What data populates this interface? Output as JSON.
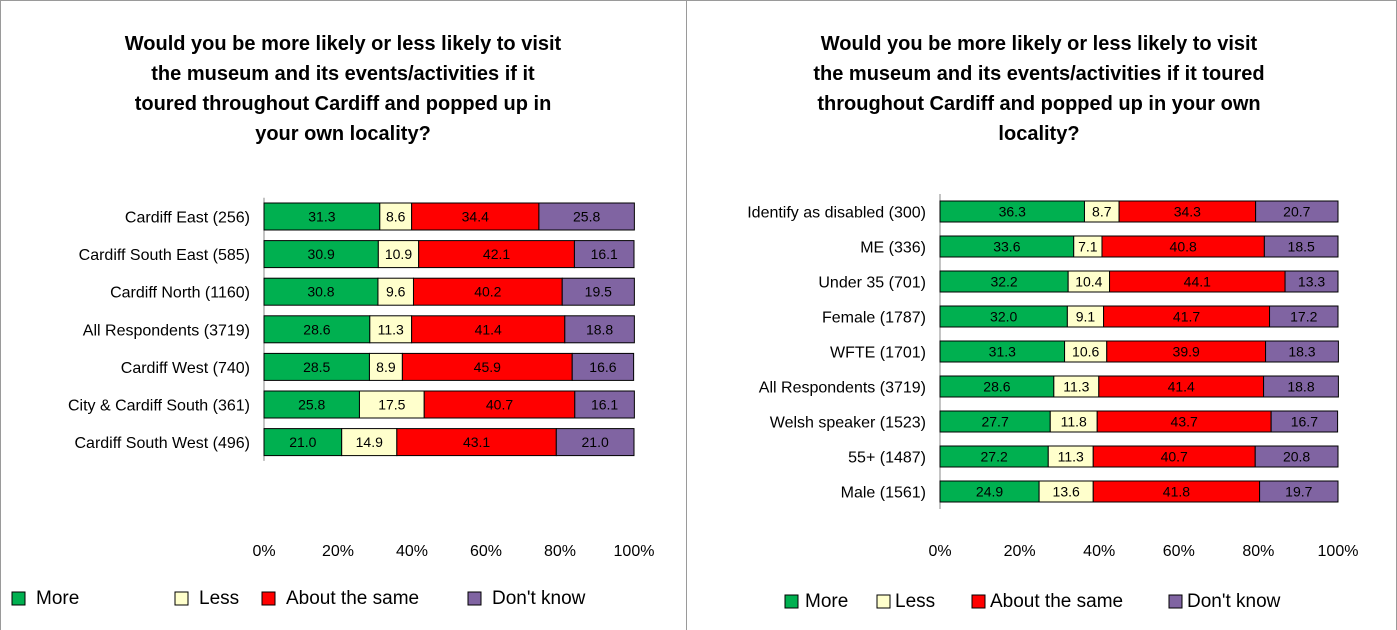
{
  "charts": [
    {
      "type": "bar",
      "stacked": true,
      "orientation": "horizontal",
      "title_lines": [
        "Would you be more likely or less likely to visit",
        "the museum and its events/activities if it",
        "toured throughout Cardiff and popped up in",
        "your own locality?"
      ],
      "categories": [
        "Cardiff East (256)",
        "Cardiff South East (585)",
        "Cardiff North (1160)",
        "All Respondents (3719)",
        "Cardiff West (740)",
        "City & Cardiff South (361)",
        "Cardiff South West (496)"
      ],
      "series": [
        {
          "name": "More",
          "color": "#00b050",
          "values": [
            31.3,
            30.9,
            30.8,
            28.6,
            28.5,
            25.8,
            21.0
          ]
        },
        {
          "name": "Less",
          "color": "#ffffcc",
          "values": [
            8.6,
            10.9,
            9.6,
            11.3,
            8.9,
            17.5,
            14.9
          ]
        },
        {
          "name": "About the same",
          "color": "#ff0000",
          "values": [
            34.4,
            42.1,
            40.2,
            41.4,
            45.9,
            40.7,
            43.1
          ]
        },
        {
          "name": "Don't know",
          "color": "#8064a2",
          "values": [
            25.8,
            16.1,
            19.5,
            18.8,
            16.6,
            16.1,
            21.0
          ]
        }
      ],
      "x_ticks": [
        "0%",
        "20%",
        "40%",
        "60%",
        "80%",
        "100%"
      ],
      "xlim": [
        0,
        100
      ],
      "legend_position": "bottom"
    },
    {
      "type": "bar",
      "stacked": true,
      "orientation": "horizontal",
      "title_lines": [
        "Would you be more likely or less likely to visit",
        "the museum and its events/activities if it toured",
        "throughout Cardiff and popped up in your own",
        "locality?"
      ],
      "categories": [
        "Identify as disabled (300)",
        "ME (336)",
        "Under 35 (701)",
        "Female (1787)",
        "WFTE (1701)",
        "All Respondents (3719)",
        "Welsh speaker (1523)",
        "55+ (1487)",
        "Male (1561)"
      ],
      "series": [
        {
          "name": "More",
          "color": "#00b050",
          "values": [
            36.3,
            33.6,
            32.2,
            32.0,
            31.3,
            28.6,
            27.7,
            27.2,
            24.9
          ]
        },
        {
          "name": "Less",
          "color": "#ffffcc",
          "values": [
            8.7,
            7.1,
            10.4,
            9.1,
            10.6,
            11.3,
            11.8,
            11.3,
            13.6
          ]
        },
        {
          "name": "About the same",
          "color": "#ff0000",
          "values": [
            34.3,
            40.8,
            44.1,
            41.7,
            39.9,
            41.4,
            43.7,
            40.7,
            41.8
          ]
        },
        {
          "name": "Don't know",
          "color": "#8064a2",
          "values": [
            20.7,
            18.5,
            13.3,
            17.2,
            18.3,
            18.8,
            16.7,
            20.8,
            19.7
          ]
        }
      ],
      "x_ticks": [
        "0%",
        "20%",
        "40%",
        "60%",
        "80%",
        "100%"
      ],
      "xlim": [
        0,
        100
      ],
      "legend_position": "bottom"
    }
  ],
  "chart_data": [
    {
      "type": "bar",
      "stacked": true,
      "title": "Would you be more likely or less likely to visit the museum and its events/activities if it toured throughout Cardiff and popped up in your own locality?",
      "categories": [
        "Cardiff East (256)",
        "Cardiff South East (585)",
        "Cardiff North (1160)",
        "All Respondents (3719)",
        "Cardiff West (740)",
        "City & Cardiff South (361)",
        "Cardiff South West (496)"
      ],
      "series": [
        {
          "name": "More",
          "values": [
            31.3,
            30.9,
            30.8,
            28.6,
            28.5,
            25.8,
            21.0
          ]
        },
        {
          "name": "Less",
          "values": [
            8.6,
            10.9,
            9.6,
            11.3,
            8.9,
            17.5,
            14.9
          ]
        },
        {
          "name": "About the same",
          "values": [
            34.4,
            42.1,
            40.2,
            41.4,
            45.9,
            40.7,
            43.1
          ]
        },
        {
          "name": "Don't know",
          "values": [
            25.8,
            16.1,
            19.5,
            18.8,
            16.6,
            16.1,
            21.0
          ]
        }
      ],
      "xlim": [
        0,
        100
      ]
    },
    {
      "type": "bar",
      "stacked": true,
      "title": "Would you be more likely or less likely to visit the museum and its events/activities if it toured throughout Cardiff and popped up in your own locality?",
      "categories": [
        "Identify as disabled (300)",
        "ME (336)",
        "Under 35 (701)",
        "Female (1787)",
        "WFTE (1701)",
        "All Respondents (3719)",
        "Welsh speaker (1523)",
        "55+ (1487)",
        "Male (1561)"
      ],
      "series": [
        {
          "name": "More",
          "values": [
            36.3,
            33.6,
            32.2,
            32.0,
            31.3,
            28.6,
            27.7,
            27.2,
            24.9
          ]
        },
        {
          "name": "Less",
          "values": [
            8.7,
            7.1,
            10.4,
            9.1,
            10.6,
            11.3,
            11.8,
            11.3,
            13.6
          ]
        },
        {
          "name": "About the same",
          "values": [
            34.3,
            40.8,
            44.1,
            41.7,
            39.9,
            41.4,
            43.7,
            40.7,
            41.8
          ]
        },
        {
          "name": "Don't know",
          "values": [
            20.7,
            18.5,
            13.3,
            17.2,
            18.3,
            18.8,
            16.7,
            20.8,
            19.7
          ]
        }
      ],
      "xlim": [
        0,
        100
      ]
    }
  ]
}
